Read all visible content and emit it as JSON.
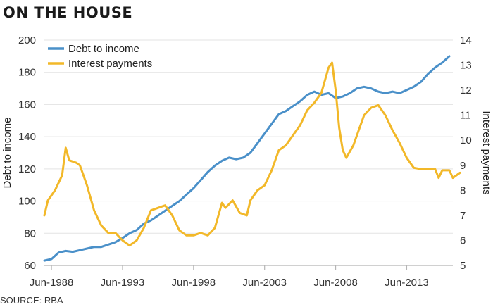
{
  "title": "ON THE HOUSE",
  "source": "SOURCE: RBA",
  "colors": {
    "debt": "#4a90c9",
    "interest": "#f2b829",
    "grid": "#e3e3e3",
    "axis": "#b5b5b5",
    "text": "#333333"
  },
  "chart_data": {
    "type": "line",
    "xlabel": "",
    "ylabel_left": "Debt to income",
    "ylabel_right": "Interest payments",
    "x_ticks": [
      "Jun-1988",
      "Jun-1993",
      "Jun-1998",
      "Jun-2003",
      "Jun-2008",
      "Jun-2013"
    ],
    "x_tick_values": [
      1988.5,
      1993.5,
      1998.5,
      2003.5,
      2008.5,
      2013.5
    ],
    "xlim": [
      1988.0,
      2016.75
    ],
    "ylim_left": [
      60,
      200
    ],
    "ylim_right": [
      5,
      14
    ],
    "y_ticks_left": [
      60,
      80,
      100,
      120,
      140,
      160,
      180,
      200
    ],
    "y_ticks_right": [
      5,
      6,
      7,
      8,
      9,
      10,
      11,
      12,
      13,
      14
    ],
    "grid": "horizontal",
    "legend": "top-left",
    "series": [
      {
        "name": "Debt to income",
        "axis": "left",
        "color": "#4a90c9",
        "points": [
          [
            1988.0,
            63
          ],
          [
            1988.5,
            64
          ],
          [
            1989.0,
            68
          ],
          [
            1989.5,
            69
          ],
          [
            1990.0,
            68.5
          ],
          [
            1990.5,
            69.5
          ],
          [
            1991.0,
            70.5
          ],
          [
            1991.5,
            71.5
          ],
          [
            1992.0,
            71.5
          ],
          [
            1992.5,
            73
          ],
          [
            1993.0,
            74.5
          ],
          [
            1993.5,
            77
          ],
          [
            1994.0,
            80
          ],
          [
            1994.5,
            82
          ],
          [
            1995.0,
            86
          ],
          [
            1995.5,
            88
          ],
          [
            1996.0,
            91
          ],
          [
            1996.5,
            94
          ],
          [
            1997.0,
            97
          ],
          [
            1997.5,
            100
          ],
          [
            1998.0,
            104
          ],
          [
            1998.5,
            108
          ],
          [
            1999.0,
            113
          ],
          [
            1999.5,
            118
          ],
          [
            2000.0,
            122
          ],
          [
            2000.5,
            125
          ],
          [
            2001.0,
            127
          ],
          [
            2001.5,
            126
          ],
          [
            2002.0,
            127
          ],
          [
            2002.5,
            130
          ],
          [
            2003.0,
            136
          ],
          [
            2003.5,
            142
          ],
          [
            2004.0,
            148
          ],
          [
            2004.5,
            154
          ],
          [
            2005.0,
            156
          ],
          [
            2005.5,
            159
          ],
          [
            2006.0,
            162
          ],
          [
            2006.5,
            166
          ],
          [
            2007.0,
            168
          ],
          [
            2007.5,
            166
          ],
          [
            2008.0,
            167
          ],
          [
            2008.5,
            164
          ],
          [
            2009.0,
            165
          ],
          [
            2009.5,
            167
          ],
          [
            2010.0,
            170
          ],
          [
            2010.5,
            171
          ],
          [
            2011.0,
            170
          ],
          [
            2011.5,
            168
          ],
          [
            2012.0,
            167
          ],
          [
            2012.5,
            168
          ],
          [
            2013.0,
            167
          ],
          [
            2013.5,
            169
          ],
          [
            2014.0,
            171
          ],
          [
            2014.5,
            174
          ],
          [
            2015.0,
            179
          ],
          [
            2015.5,
            183
          ],
          [
            2016.0,
            186
          ],
          [
            2016.5,
            190
          ]
        ]
      },
      {
        "name": "Interest payments",
        "axis": "right",
        "color": "#f2b829",
        "points": [
          [
            1988.0,
            7.0
          ],
          [
            1988.25,
            7.6
          ],
          [
            1988.75,
            8.0
          ],
          [
            1989.25,
            8.6
          ],
          [
            1989.5,
            9.7
          ],
          [
            1989.75,
            9.2
          ],
          [
            1990.25,
            9.1
          ],
          [
            1990.5,
            9.0
          ],
          [
            1990.75,
            8.6
          ],
          [
            1991.0,
            8.2
          ],
          [
            1991.5,
            7.2
          ],
          [
            1992.0,
            6.6
          ],
          [
            1992.5,
            6.3
          ],
          [
            1993.0,
            6.3
          ],
          [
            1993.5,
            6.0
          ],
          [
            1994.0,
            5.8
          ],
          [
            1994.5,
            6.0
          ],
          [
            1995.0,
            6.5
          ],
          [
            1995.5,
            7.2
          ],
          [
            1996.0,
            7.3
          ],
          [
            1996.5,
            7.4
          ],
          [
            1997.0,
            7.0
          ],
          [
            1997.5,
            6.4
          ],
          [
            1998.0,
            6.2
          ],
          [
            1998.5,
            6.2
          ],
          [
            1999.0,
            6.3
          ],
          [
            1999.5,
            6.2
          ],
          [
            2000.0,
            6.5
          ],
          [
            2000.5,
            7.5
          ],
          [
            2000.75,
            7.3
          ],
          [
            2001.25,
            7.6
          ],
          [
            2001.75,
            7.1
          ],
          [
            2002.25,
            7.0
          ],
          [
            2002.5,
            7.6
          ],
          [
            2003.0,
            8.0
          ],
          [
            2003.5,
            8.2
          ],
          [
            2004.0,
            8.8
          ],
          [
            2004.5,
            9.6
          ],
          [
            2005.0,
            9.8
          ],
          [
            2005.5,
            10.2
          ],
          [
            2006.0,
            10.6
          ],
          [
            2006.5,
            11.2
          ],
          [
            2007.0,
            11.5
          ],
          [
            2007.5,
            11.9
          ],
          [
            2008.0,
            12.9
          ],
          [
            2008.25,
            13.1
          ],
          [
            2008.5,
            12.0
          ],
          [
            2008.75,
            10.5
          ],
          [
            2009.0,
            9.6
          ],
          [
            2009.25,
            9.3
          ],
          [
            2009.75,
            9.8
          ],
          [
            2010.0,
            10.2
          ],
          [
            2010.5,
            11.0
          ],
          [
            2011.0,
            11.3
          ],
          [
            2011.5,
            11.4
          ],
          [
            2012.0,
            11.0
          ],
          [
            2012.5,
            10.4
          ],
          [
            2013.0,
            9.9
          ],
          [
            2013.5,
            9.3
          ],
          [
            2014.0,
            8.9
          ],
          [
            2014.5,
            8.85
          ],
          [
            2015.0,
            8.85
          ],
          [
            2015.5,
            8.85
          ],
          [
            2015.75,
            8.5
          ],
          [
            2016.0,
            8.8
          ],
          [
            2016.5,
            8.8
          ],
          [
            2016.75,
            8.5
          ],
          [
            2017.0,
            8.6
          ],
          [
            2017.25,
            8.7
          ]
        ]
      }
    ]
  }
}
